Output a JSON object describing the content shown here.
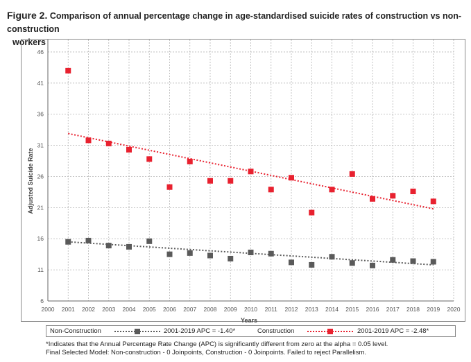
{
  "title": {
    "figure_label": "Figure 2.",
    "text_line1": "Comparison of annual percentage change in age-standardised suicide rates of construction vs non-construction",
    "text_line2": "workers"
  },
  "chart_data": {
    "type": "scatter",
    "xlabel": "Years",
    "ylabel": "Adjusted Suicide Rate",
    "xlim": [
      2000,
      2020
    ],
    "ylim": [
      6,
      48
    ],
    "x_ticks": [
      2000,
      2001,
      2002,
      2003,
      2004,
      2005,
      2006,
      2007,
      2008,
      2009,
      2010,
      2011,
      2012,
      2013,
      2014,
      2015,
      2016,
      2017,
      2018,
      2019,
      2020
    ],
    "y_ticks": [
      6,
      11,
      16,
      21,
      26,
      31,
      36,
      41,
      46
    ],
    "grid": true,
    "series": [
      {
        "name": "Construction",
        "color": "#e8212f",
        "x": [
          2001,
          2002,
          2003,
          2004,
          2005,
          2006,
          2007,
          2008,
          2009,
          2010,
          2011,
          2012,
          2013,
          2014,
          2015,
          2016,
          2017,
          2018,
          2019
        ],
        "values": [
          43.0,
          31.8,
          31.3,
          30.3,
          28.8,
          24.3,
          28.4,
          25.3,
          25.3,
          26.8,
          23.9,
          25.8,
          20.2,
          23.9,
          26.4,
          22.4,
          22.9,
          23.6,
          22.0
        ],
        "trend": {
          "label": "2001-2019 APC = -2.48*",
          "start": [
            2001,
            32.9
          ],
          "end": [
            2019,
            20.8
          ]
        }
      },
      {
        "name": "Non-Construction",
        "color": "#5a5a5a",
        "x": [
          2001,
          2002,
          2003,
          2004,
          2005,
          2006,
          2007,
          2008,
          2009,
          2010,
          2011,
          2012,
          2013,
          2014,
          2015,
          2016,
          2017,
          2018,
          2019
        ],
        "values": [
          15.5,
          15.7,
          14.9,
          14.7,
          15.6,
          13.5,
          13.7,
          13.3,
          12.8,
          13.8,
          13.6,
          12.2,
          11.8,
          13.1,
          12.1,
          11.7,
          12.6,
          12.4,
          12.3
        ],
        "trend": {
          "label": "2001-2019 APC = -1.40*",
          "start": [
            2001,
            15.5
          ],
          "end": [
            2019,
            11.8
          ]
        }
      }
    ]
  },
  "legend": {
    "noncon_label": "Non-Construction",
    "noncon_apc": "2001-2019 APC = -1.40*",
    "con_label": "Construction",
    "con_apc": "2001-2019 APC = -2.48*"
  },
  "footnotes": {
    "line1": "*Indicates that the Annual Percentage Rate Change (APC) is significantly different from zero at the alpha = 0.05 level.",
    "line2": "Final Selected Model: Non-construction - 0 Joinpoints, Construction - 0 Joinpoints. Failed to reject Parallelism."
  }
}
